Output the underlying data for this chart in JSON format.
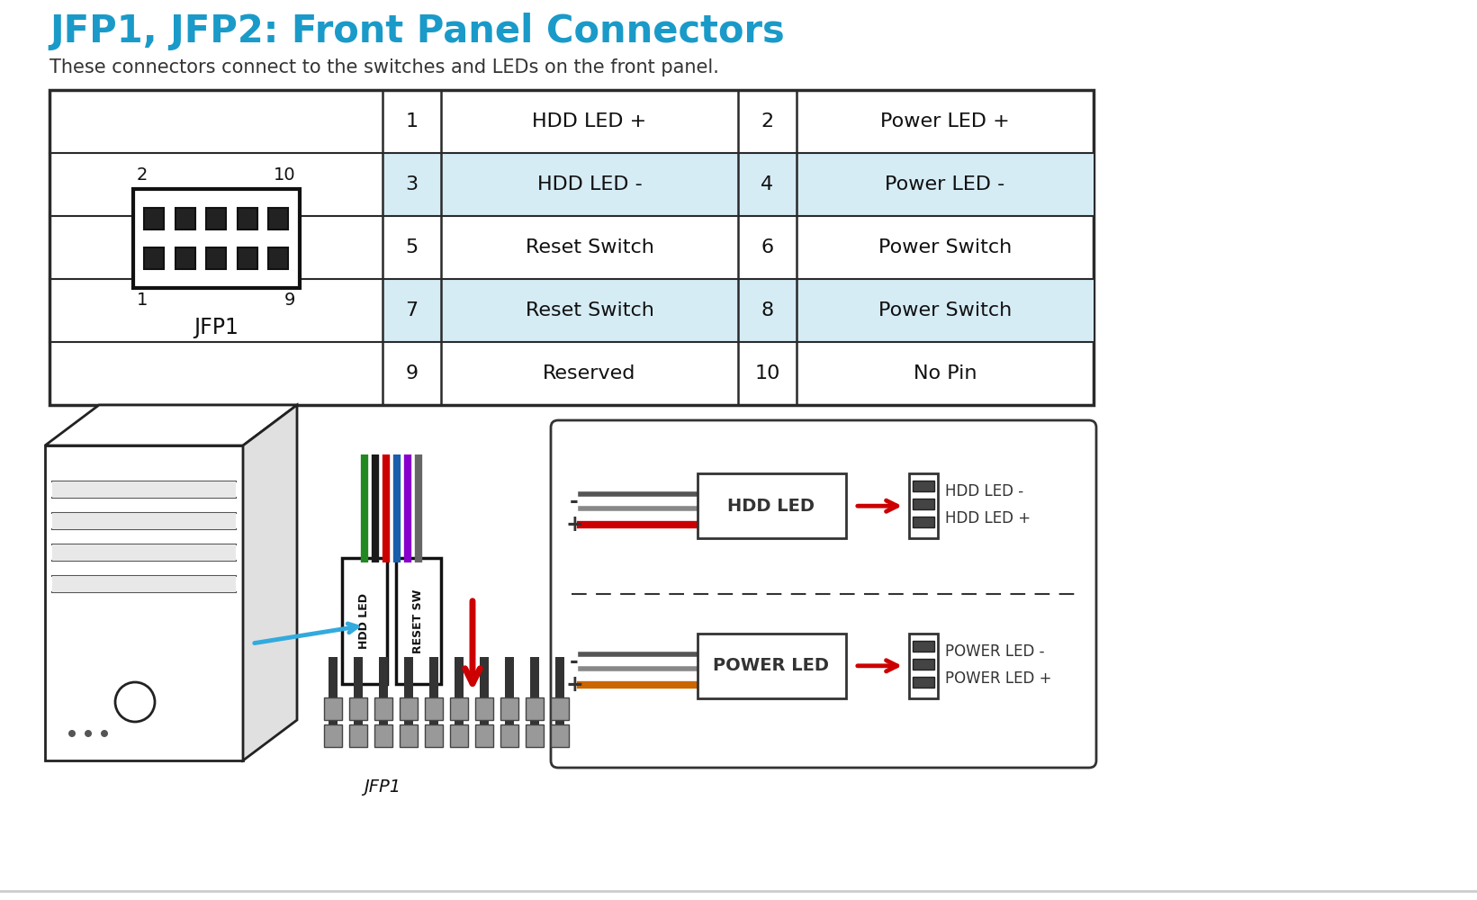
{
  "title": "JFP1, JFP2: Front Panel Connectors",
  "subtitle": "These connectors connect to the switches and LEDs on the front panel.",
  "title_color": "#1a9ac8",
  "subtitle_color": "#333333",
  "bg_color": "#ffffff",
  "table_rows": [
    {
      "pin1": "1",
      "label1": "HDD LED +",
      "pin2": "2",
      "label2": "Power LED +",
      "shaded": false
    },
    {
      "pin1": "3",
      "label1": "HDD LED -",
      "pin2": "4",
      "label2": "Power LED -",
      "shaded": true
    },
    {
      "pin1": "5",
      "label1": "Reset Switch",
      "pin2": "6",
      "label2": "Power Switch",
      "shaded": false
    },
    {
      "pin1": "7",
      "label1": "Reset Switch",
      "pin2": "8",
      "label2": "Power Switch",
      "shaded": true
    },
    {
      "pin1": "9",
      "label1": "Reserved",
      "pin2": "10",
      "label2": "No Pin",
      "shaded": false
    }
  ],
  "shade_color": "#d6ecf5",
  "table_border_color": "#2a2a2a",
  "jfp1_label": "JFP1",
  "hdd_led_label": "HDD LED",
  "power_led_label": "POWER LED",
  "hdd_led_minus": "HDD LED -",
  "hdd_led_plus": "HDD LED +",
  "power_led_minus": "POWER LED -",
  "power_led_plus": "POWER LED +",
  "arrow_color": "#cc0000",
  "cyan_color": "#33aadd",
  "wire_colors_top": [
    "#cc0000",
    "#1a5fab",
    "#228822",
    "#333333",
    "#666666"
  ],
  "wire_colors_plug": [
    "#228822",
    "#333333",
    "#cc0000",
    "#1a5fab",
    "#333333",
    "#666666"
  ]
}
